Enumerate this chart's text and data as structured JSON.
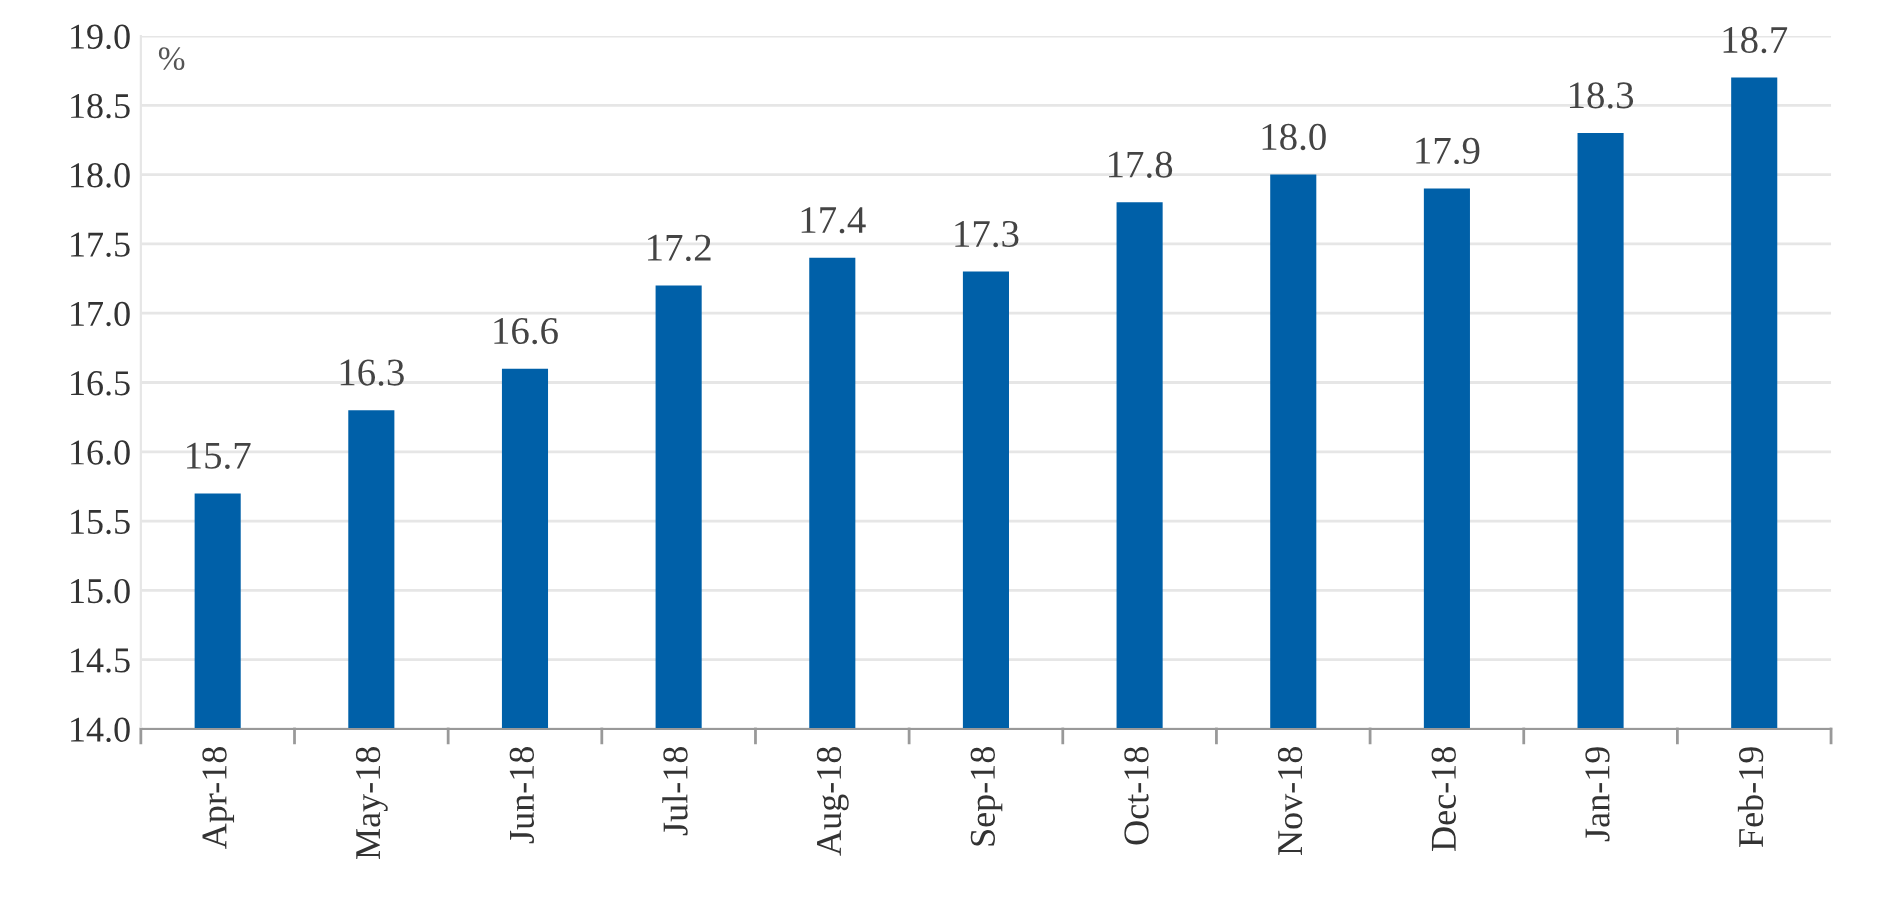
{
  "chart_data": {
    "type": "bar",
    "ylabel": "%",
    "categories": [
      "Apr-18",
      "May-18",
      "Jun-18",
      "Jul-18",
      "Aug-18",
      "Sep-18",
      "Oct-18",
      "Nov-18",
      "Dec-18",
      "Jan-19",
      "Feb-19"
    ],
    "values": [
      15.7,
      16.3,
      16.6,
      17.2,
      17.4,
      17.3,
      17.8,
      18.0,
      17.9,
      18.3,
      18.7
    ],
    "color": "#0060a8",
    "ylim": [
      14.0,
      19.0
    ],
    "yticks": [
      {
        "value": 14.0,
        "label": "14.0"
      },
      {
        "value": 14.5,
        "label": "14.5"
      },
      {
        "value": 15.0,
        "label": "15.0"
      },
      {
        "value": 15.5,
        "label": "15.5"
      },
      {
        "value": 16.0,
        "label": "16.0"
      },
      {
        "value": 16.5,
        "label": "16.5"
      },
      {
        "value": 17.0,
        "label": "17.0"
      },
      {
        "value": 17.5,
        "label": "17.5"
      },
      {
        "value": 18.0,
        "label": "18.0"
      },
      {
        "value": 18.5,
        "label": "18.5"
      },
      {
        "value": 19.0,
        "label": "19.0"
      }
    ],
    "grid": "y",
    "value_labels": [
      "15.7",
      "16.3",
      "16.6",
      "17.2",
      "17.4",
      "17.3",
      "17.8",
      "18.0",
      "17.9",
      "18.3",
      "18.7"
    ]
  }
}
